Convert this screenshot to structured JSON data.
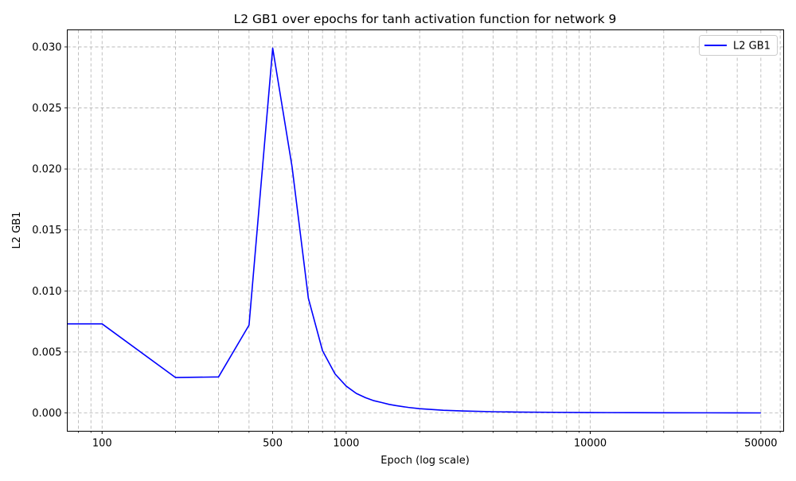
{
  "chart_data": {
    "type": "line",
    "title": "L2 GB1 over epochs for tanh activation function for network 9",
    "xlabel": "Epoch (log scale)",
    "ylabel": "L2 GB1",
    "x_scale": "log",
    "xlim": [
      72,
      62000
    ],
    "ylim": [
      -0.0015,
      0.0314
    ],
    "x_ticks": [
      100,
      500,
      1000,
      10000,
      50000
    ],
    "x_tick_labels": [
      "100",
      "500",
      "1000",
      "10000",
      "50000"
    ],
    "y_ticks": [
      0.0,
      0.005,
      0.01,
      0.015,
      0.02,
      0.025,
      0.03
    ],
    "y_tick_labels": [
      "0.000",
      "0.005",
      "0.010",
      "0.015",
      "0.020",
      "0.025",
      "0.030"
    ],
    "grid": true,
    "legend_position": "top-right",
    "series": [
      {
        "name": "L2 GB1",
        "color": "#0000ff",
        "x": [
          50,
          100,
          200,
          300,
          400,
          500,
          600,
          700,
          800,
          900,
          1000,
          1100,
          1200,
          1300,
          1400,
          1500,
          1600,
          1800,
          2000,
          2500,
          3000,
          4000,
          5000,
          7000,
          10000,
          15000,
          20000,
          30000,
          40000,
          50000
        ],
        "y": [
          0.0073,
          0.0073,
          0.0029,
          0.00295,
          0.0072,
          0.0299,
          0.0202,
          0.0094,
          0.0051,
          0.0032,
          0.0022,
          0.0016,
          0.00125,
          0.001,
          0.00085,
          0.0007,
          0.0006,
          0.00045,
          0.00035,
          0.00022,
          0.00016,
          0.0001,
          7e-05,
          5e-05,
          3e-05,
          2e-05,
          1.5e-05,
          1e-05,
          5e-06,
          2e-06
        ]
      }
    ]
  }
}
